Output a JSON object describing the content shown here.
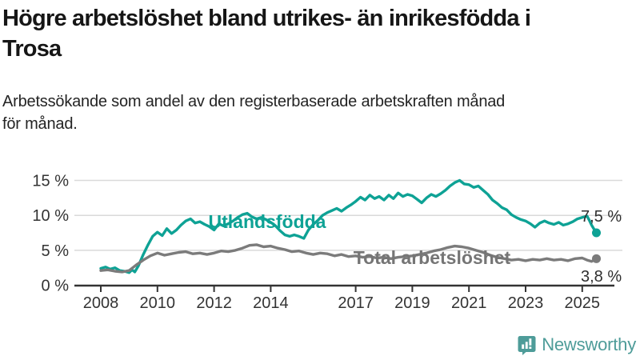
{
  "header": {
    "title_lines": [
      "Högre arbetslöshet bland utrikes- än inrikesfödda i",
      "Trosa"
    ],
    "subtitle_lines": [
      "Arbetssökande som andel av den registerbaserade arbetskraften månad",
      "för månad."
    ]
  },
  "colors": {
    "accent_teal": "#0EA295",
    "series_gray": "#7B7B7B",
    "grid": "#DADADA",
    "axis": "#333333",
    "annotation_text": "#2F2F2F",
    "brand_teal": "#4E9C99"
  },
  "chart_data": {
    "type": "line",
    "title": "Högre arbetslöshet bland utrikes- än inrikesfödda i Trosa",
    "subtitle": "Arbetssökande som andel av den registerbaserade arbetskraften månad för månad.",
    "xlabel": "",
    "ylabel": "",
    "unit": "%",
    "xlim": [
      2008,
      2025.7
    ],
    "ylim": [
      0,
      16
    ],
    "grid": "horizontal",
    "legend_position": "inline-labels",
    "y_ticks": [
      {
        "value": 0,
        "label": "0 %"
      },
      {
        "value": 5,
        "label": "5 %"
      },
      {
        "value": 10,
        "label": "10 %"
      },
      {
        "value": 15,
        "label": "15 %"
      }
    ],
    "x_ticks": [
      {
        "value": 2008,
        "label": "2008"
      },
      {
        "value": 2010,
        "label": "2010"
      },
      {
        "value": 2012,
        "label": "2012"
      },
      {
        "value": 2014,
        "label": "2014"
      },
      {
        "value": 2017,
        "label": "2017"
      },
      {
        "value": 2019,
        "label": "2019"
      },
      {
        "value": 2021,
        "label": "2021"
      },
      {
        "value": 2023,
        "label": "2023"
      },
      {
        "value": 2025,
        "label": "2025"
      }
    ],
    "series": [
      {
        "name": "Utlandsfödda",
        "color": "#0EA295",
        "end_label": "7,5 %",
        "end_value": 7.5,
        "x": [
          2008.0,
          2008.17,
          2008.33,
          2008.5,
          2008.67,
          2008.83,
          2009.0,
          2009.1,
          2009.2,
          2009.33,
          2009.5,
          2009.67,
          2009.83,
          2010.0,
          2010.17,
          2010.33,
          2010.5,
          2010.67,
          2010.83,
          2011.0,
          2011.17,
          2011.33,
          2011.5,
          2011.67,
          2011.83,
          2012.0,
          2012.17,
          2012.33,
          2012.5,
          2012.67,
          2012.83,
          2013.0,
          2013.17,
          2013.33,
          2013.5,
          2013.67,
          2013.83,
          2014.0,
          2014.17,
          2014.33,
          2014.5,
          2014.67,
          2014.83,
          2015.0,
          2015.17,
          2015.33,
          2015.5,
          2015.67,
          2015.83,
          2016.0,
          2016.17,
          2016.33,
          2016.5,
          2016.67,
          2016.83,
          2017.0,
          2017.17,
          2017.33,
          2017.5,
          2017.67,
          2017.83,
          2018.0,
          2018.17,
          2018.33,
          2018.5,
          2018.67,
          2018.83,
          2019.0,
          2019.17,
          2019.33,
          2019.5,
          2019.67,
          2019.83,
          2020.0,
          2020.17,
          2020.33,
          2020.5,
          2020.67,
          2020.83,
          2021.0,
          2021.17,
          2021.33,
          2021.5,
          2021.67,
          2021.83,
          2022.0,
          2022.17,
          2022.33,
          2022.5,
          2022.67,
          2022.83,
          2023.0,
          2023.17,
          2023.33,
          2023.5,
          2023.67,
          2023.83,
          2024.0,
          2024.17,
          2024.33,
          2024.5,
          2024.67,
          2024.83,
          2025.0,
          2025.17,
          2025.25,
          2025.33,
          2025.42,
          2025.5
        ],
        "values": [
          2.4,
          2.6,
          2.3,
          2.5,
          2.1,
          2.0,
          1.8,
          2.2,
          1.9,
          2.8,
          4.4,
          5.8,
          7.0,
          7.6,
          7.1,
          8.1,
          7.4,
          7.9,
          8.6,
          9.2,
          9.5,
          8.9,
          9.1,
          8.7,
          8.4,
          7.9,
          8.8,
          8.5,
          8.8,
          9.2,
          9.7,
          10.1,
          10.3,
          9.8,
          9.5,
          9.7,
          9.4,
          9.0,
          8.5,
          7.8,
          7.2,
          7.0,
          7.2,
          7.0,
          6.7,
          7.9,
          8.7,
          9.3,
          10.0,
          10.4,
          10.7,
          11.0,
          10.6,
          11.1,
          11.5,
          12.0,
          12.6,
          12.2,
          12.9,
          12.4,
          12.7,
          12.2,
          12.9,
          12.4,
          13.2,
          12.7,
          13.0,
          12.8,
          12.3,
          11.8,
          12.5,
          13.0,
          12.7,
          13.1,
          13.6,
          14.2,
          14.7,
          15.0,
          14.5,
          14.4,
          14.0,
          14.2,
          13.6,
          13.0,
          12.2,
          11.7,
          11.1,
          10.8,
          10.1,
          9.7,
          9.4,
          9.2,
          8.8,
          8.3,
          8.9,
          9.2,
          8.9,
          8.7,
          9.0,
          8.6,
          8.8,
          9.1,
          9.5,
          9.7,
          9.9,
          9.3,
          8.6,
          8.0,
          7.5
        ]
      },
      {
        "name": "Total arbetslöshet",
        "color": "#7B7B7B",
        "end_label": "3,8 %",
        "end_value": 3.8,
        "x": [
          2008.0,
          2008.25,
          2008.5,
          2008.75,
          2009.0,
          2009.25,
          2009.5,
          2009.75,
          2010.0,
          2010.25,
          2010.5,
          2010.75,
          2011.0,
          2011.25,
          2011.5,
          2011.75,
          2012.0,
          2012.25,
          2012.5,
          2012.75,
          2013.0,
          2013.25,
          2013.5,
          2013.75,
          2014.0,
          2014.25,
          2014.5,
          2014.75,
          2015.0,
          2015.25,
          2015.5,
          2015.75,
          2016.0,
          2016.25,
          2016.5,
          2016.75,
          2017.0,
          2017.25,
          2017.5,
          2017.75,
          2018.0,
          2018.25,
          2018.5,
          2018.75,
          2019.0,
          2019.25,
          2019.5,
          2019.75,
          2020.0,
          2020.25,
          2020.5,
          2020.75,
          2021.0,
          2021.25,
          2021.5,
          2021.75,
          2022.0,
          2022.25,
          2022.5,
          2022.75,
          2023.0,
          2023.25,
          2023.5,
          2023.75,
          2024.0,
          2024.25,
          2024.5,
          2024.75,
          2025.0,
          2025.17,
          2025.33,
          2025.5
        ],
        "values": [
          2.1,
          2.2,
          2.0,
          1.9,
          2.1,
          2.9,
          3.6,
          4.2,
          4.6,
          4.3,
          4.5,
          4.7,
          4.8,
          4.5,
          4.6,
          4.4,
          4.6,
          4.9,
          4.8,
          5.0,
          5.3,
          5.7,
          5.8,
          5.5,
          5.6,
          5.3,
          5.1,
          4.8,
          4.9,
          4.6,
          4.4,
          4.6,
          4.5,
          4.2,
          4.4,
          4.1,
          4.2,
          4.0,
          4.1,
          3.9,
          4.0,
          3.8,
          4.0,
          4.1,
          4.2,
          4.4,
          4.6,
          4.9,
          5.1,
          5.4,
          5.6,
          5.5,
          5.3,
          5.0,
          4.7,
          4.3,
          4.0,
          3.8,
          3.6,
          3.7,
          3.5,
          3.7,
          3.6,
          3.8,
          3.6,
          3.7,
          3.5,
          3.8,
          3.9,
          3.6,
          3.4,
          3.8
        ]
      }
    ]
  },
  "footer": {
    "brand": "Newsworthy"
  }
}
